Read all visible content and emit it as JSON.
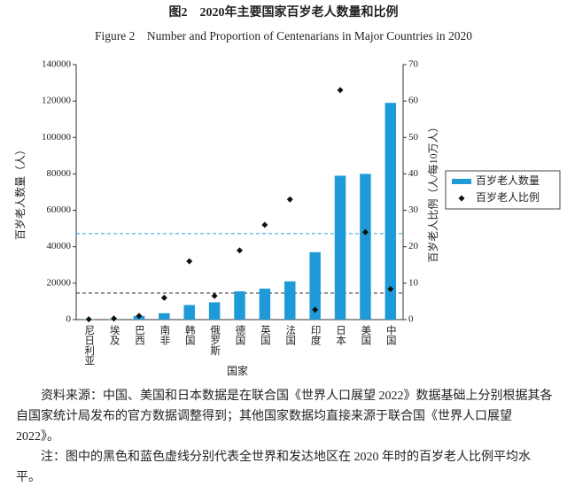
{
  "chart_data": {
    "type": "bar",
    "title": "图2　2020年主要国家百岁老人数量和比例",
    "subtitle": "Figure 2　Number and Proportion of Centenarians in Major Countries in 2020",
    "x_label": "国家",
    "y_label": "百岁老人数量（人）",
    "y2_label": "百岁老人比例（人/每10万人）",
    "categories": [
      "尼日利亚",
      "埃及",
      "巴西",
      "南非",
      "韩国",
      "俄罗斯",
      "德国",
      "英国",
      "法国",
      "印度",
      "日本",
      "美国",
      "中国"
    ],
    "series": [
      {
        "name": "百岁老人数量",
        "type": "bar",
        "color": "#1f9ad8",
        "values": [
          200,
          300,
          2000,
          3500,
          8000,
          9500,
          15500,
          17000,
          21000,
          37000,
          79000,
          80000,
          119000
        ]
      },
      {
        "name": "百岁老人比例",
        "type": "scatter",
        "axis": "y2",
        "color": "#111111",
        "values": [
          0.1,
          0.3,
          1,
          6,
          16,
          6.5,
          19,
          26,
          33,
          2.7,
          63,
          24,
          8.4
        ]
      }
    ],
    "ylim": [
      0,
      140000
    ],
    "yticks": [
      0,
      20000,
      40000,
      60000,
      80000,
      100000,
      120000,
      140000
    ],
    "y2lim": [
      0,
      70
    ],
    "y2ticks": [
      0,
      10,
      20,
      30,
      40,
      50,
      60,
      70
    ],
    "reference_lines": [
      {
        "value": 7.3,
        "axis": "y2",
        "color": "#333333"
      },
      {
        "value": 23.6,
        "axis": "y2",
        "color": "#2a9fd6"
      }
    ],
    "legend": "right"
  },
  "notes": [
    "资料来源：中国、美国和日本数据是在联合国《世界人口展望 2022》数据基础上分别根据其各自国家统计局发布的官方数据调整得到；其他国家数据均直接来源于联合国《世界人口展望 2022》。",
    "注：图中的黑色和蓝色虚线分别代表全世界和发达地区在 2020 年时的百岁老人比例平均水平。"
  ]
}
